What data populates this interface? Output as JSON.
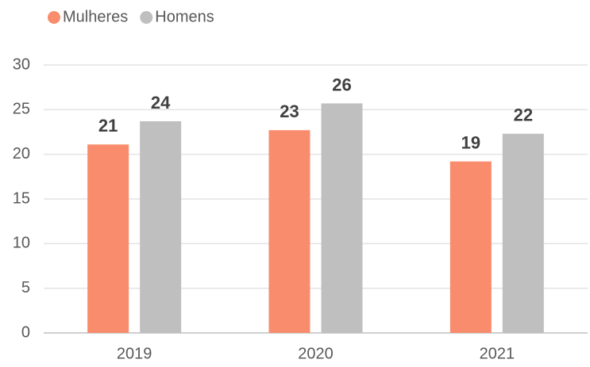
{
  "chart_data": {
    "type": "bar",
    "categories": [
      "2019",
      "2020",
      "2021"
    ],
    "series": [
      {
        "name": "Mulheres",
        "color": "#f98c6d",
        "values": [
          21.1,
          22.7,
          19.2
        ],
        "value_labels": [
          "21",
          "23",
          "19"
        ]
      },
      {
        "name": "Homens",
        "color": "#bfbfbf",
        "values": [
          23.7,
          25.7,
          22.3
        ],
        "value_labels": [
          "24",
          "26",
          "22"
        ]
      }
    ],
    "ylim": [
      0,
      30
    ],
    "yticks": [
      0,
      5,
      10,
      15,
      20,
      25,
      30
    ],
    "grid": true
  }
}
